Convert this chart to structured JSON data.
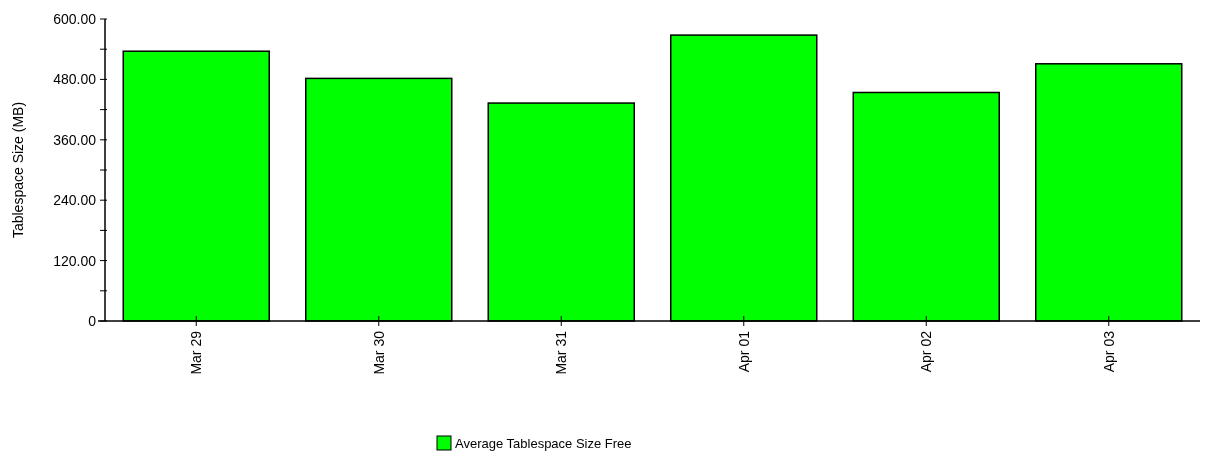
{
  "chart_data": {
    "type": "bar",
    "ylabel": "Tablespace Size (MB)",
    "categories": [
      "Mar 29",
      "Mar 30",
      "Mar 31",
      "Apr 01",
      "Apr 02",
      "Apr 03"
    ],
    "series": [
      {
        "name": "Average Tablespace Size Free",
        "color": "#00ff00",
        "values": [
          536,
          482,
          433,
          568,
          454,
          511
        ]
      }
    ],
    "ylim": [
      0,
      600
    ],
    "yticks": [
      0,
      {
        "value": 60,
        "label": null
      },
      {
        "value": 120,
        "label": "120.00"
      },
      {
        "value": 180,
        "label": null
      },
      {
        "value": 240,
        "label": "240.00"
      },
      {
        "value": 300,
        "label": null
      },
      {
        "value": 360,
        "label": "360.00"
      },
      {
        "value": 420,
        "label": null
      },
      {
        "value": 480,
        "label": "480.00"
      },
      {
        "value": 540,
        "label": null
      },
      {
        "value": 600,
        "label": "600.00"
      }
    ],
    "legend": "bottom"
  }
}
